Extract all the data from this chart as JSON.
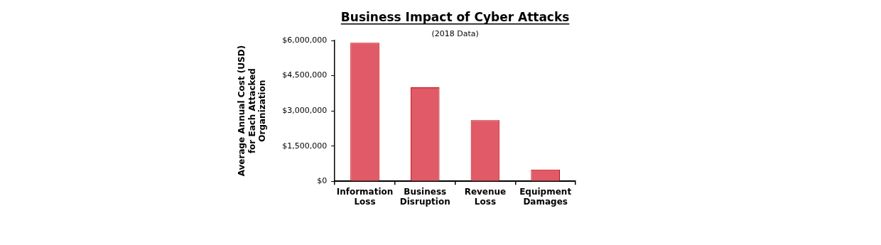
{
  "chart_data": {
    "type": "bar",
    "title": "Business Impact of Cyber Attacks",
    "subtitle": "(2018 Data)",
    "ylabel": "Average Annual Cost (USD) for Each Attacked Organization",
    "categories": [
      "Information Loss",
      "Business Disruption",
      "Revenue Loss",
      "Equipment Damages"
    ],
    "values": [
      5900000,
      4000000,
      2600000,
      500000
    ],
    "color": "#e05a68",
    "ylim": [
      0,
      6000000
    ],
    "yticks": [
      {
        "value": 0,
        "label": "$0"
      },
      {
        "value": 1500000,
        "label": "$1,500,000"
      },
      {
        "value": 3000000,
        "label": "$3,000,000"
      },
      {
        "value": 4500000,
        "label": "$4,500,000"
      },
      {
        "value": 6000000,
        "label": "$6,000,000"
      }
    ],
    "grid": false,
    "legend": false
  }
}
